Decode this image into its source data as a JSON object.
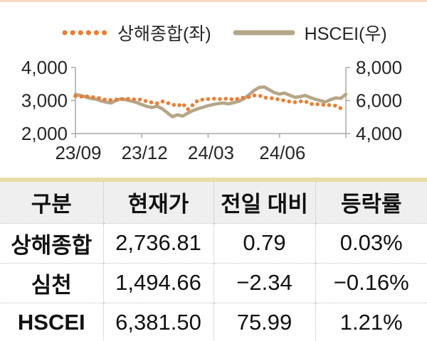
{
  "accents": {
    "top_border_color": "#F7DCC2",
    "table_top_border_color": "#E9DCA6",
    "header_bg": "#EFEFEF",
    "axis_color": "#A9A9A9",
    "text_color": "#262626"
  },
  "legend": {
    "items": [
      {
        "label": "상해종합(좌)",
        "color": "#ED7D31",
        "style": "dotted"
      },
      {
        "label": "HSCEI(우)",
        "color": "#B5A687",
        "style": "solid"
      }
    ]
  },
  "chart_data": {
    "type": "line",
    "title": "",
    "xlabel": "",
    "ylabel_left": "",
    "ylabel_right": "",
    "grid": false,
    "legend_position": "top",
    "x_ticks": [
      {
        "index": 0,
        "label": "23/09"
      },
      {
        "index": 13,
        "label": "23/12"
      },
      {
        "index": 26,
        "label": "24/03"
      },
      {
        "index": 40,
        "label": "24/06"
      },
      {
        "index": 53,
        "label": ""
      }
    ],
    "left_axis": {
      "min": 2000,
      "max": 4000,
      "tick_values": [
        2000,
        3000,
        4000
      ],
      "tick_labels": [
        "2,000",
        "3,000",
        "4,000"
      ]
    },
    "right_axis": {
      "min": 4000,
      "max": 8000,
      "tick_values": [
        4000,
        6000,
        8000
      ],
      "tick_labels": [
        "4,000",
        "6,000",
        "8,000"
      ]
    },
    "series": [
      {
        "name": "상해종합(좌)",
        "axis": "left",
        "style": "dotted",
        "color": "#ED7D31",
        "values": [
          3133,
          3117,
          3132,
          3110,
          3088,
          3065,
          3018,
          3019,
          3030,
          3038,
          3054,
          3041,
          3031,
          3032,
          2969,
          2943,
          2915,
          2975,
          2929,
          2881,
          2832,
          2910,
          2730,
          2866,
          3005,
          3028,
          3046,
          3055,
          3048,
          3041,
          3069,
          3019,
          3065,
          3089,
          3105,
          3155,
          3154,
          3089,
          3087,
          3051,
          3033,
          2998,
          2967,
          2949,
          2971,
          2982,
          2890,
          2905,
          2862,
          2879,
          2854,
          2842,
          2765,
          2737
        ]
      },
      {
        "name": "HSCEI(우)",
        "axis": "right",
        "style": "solid",
        "color": "#B5A687",
        "values": [
          6380,
          6300,
          6220,
          6130,
          6080,
          5980,
          5900,
          5850,
          6010,
          6110,
          6040,
          5960,
          5880,
          5760,
          5640,
          5580,
          5660,
          5500,
          5260,
          5020,
          5140,
          5060,
          5230,
          5390,
          5500,
          5590,
          5690,
          5760,
          5820,
          5850,
          5800,
          5870,
          5950,
          6100,
          6350,
          6600,
          6790,
          6820,
          6650,
          6480,
          6390,
          6450,
          6320,
          6200,
          6230,
          6310,
          6180,
          6080,
          5990,
          5920,
          6050,
          6160,
          6130,
          6381.5
        ]
      }
    ]
  },
  "table": {
    "headers": [
      "구분",
      "현재가",
      "전일 대비",
      "등락률"
    ],
    "rows": [
      {
        "label": "상해종합",
        "price": "2,736.81",
        "change": "0.79",
        "rate": "0.03%"
      },
      {
        "label": "심천",
        "price": "1,494.66",
        "change": "−2.34",
        "rate": "−0.16%"
      },
      {
        "label": "HSCEI",
        "price": "6,381.50",
        "change": "75.99",
        "rate": "1.21%"
      }
    ]
  }
}
